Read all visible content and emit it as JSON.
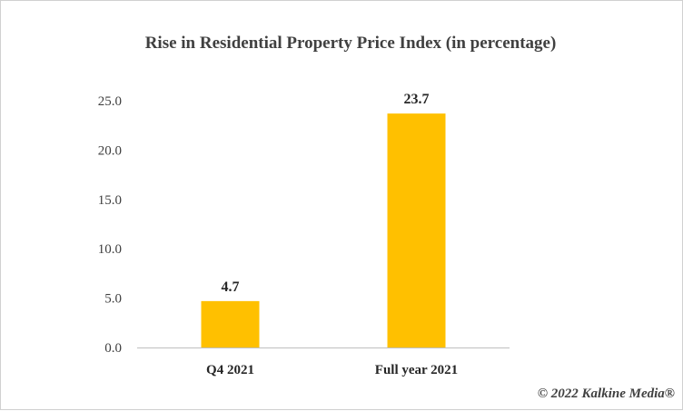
{
  "credit": "© 2022 Kalkine Media®",
  "colors": {
    "bar": "#FFC000",
    "axis": "#bfbfbf",
    "text": "#404040"
  },
  "chart_data": {
    "type": "bar",
    "title": "Rise in Residential Property Price Index (in percentage)",
    "xlabel": "",
    "ylabel": "",
    "categories": [
      "Q4 2021",
      "Full year 2021"
    ],
    "values": [
      4.7,
      23.7
    ],
    "data_labels": [
      "4.7",
      "23.7"
    ],
    "ylim": [
      0,
      25
    ],
    "yticks": [
      "0.0",
      "5.0",
      "10.0",
      "15.0",
      "20.0",
      "25.0"
    ],
    "grid": false,
    "legend": "none"
  }
}
